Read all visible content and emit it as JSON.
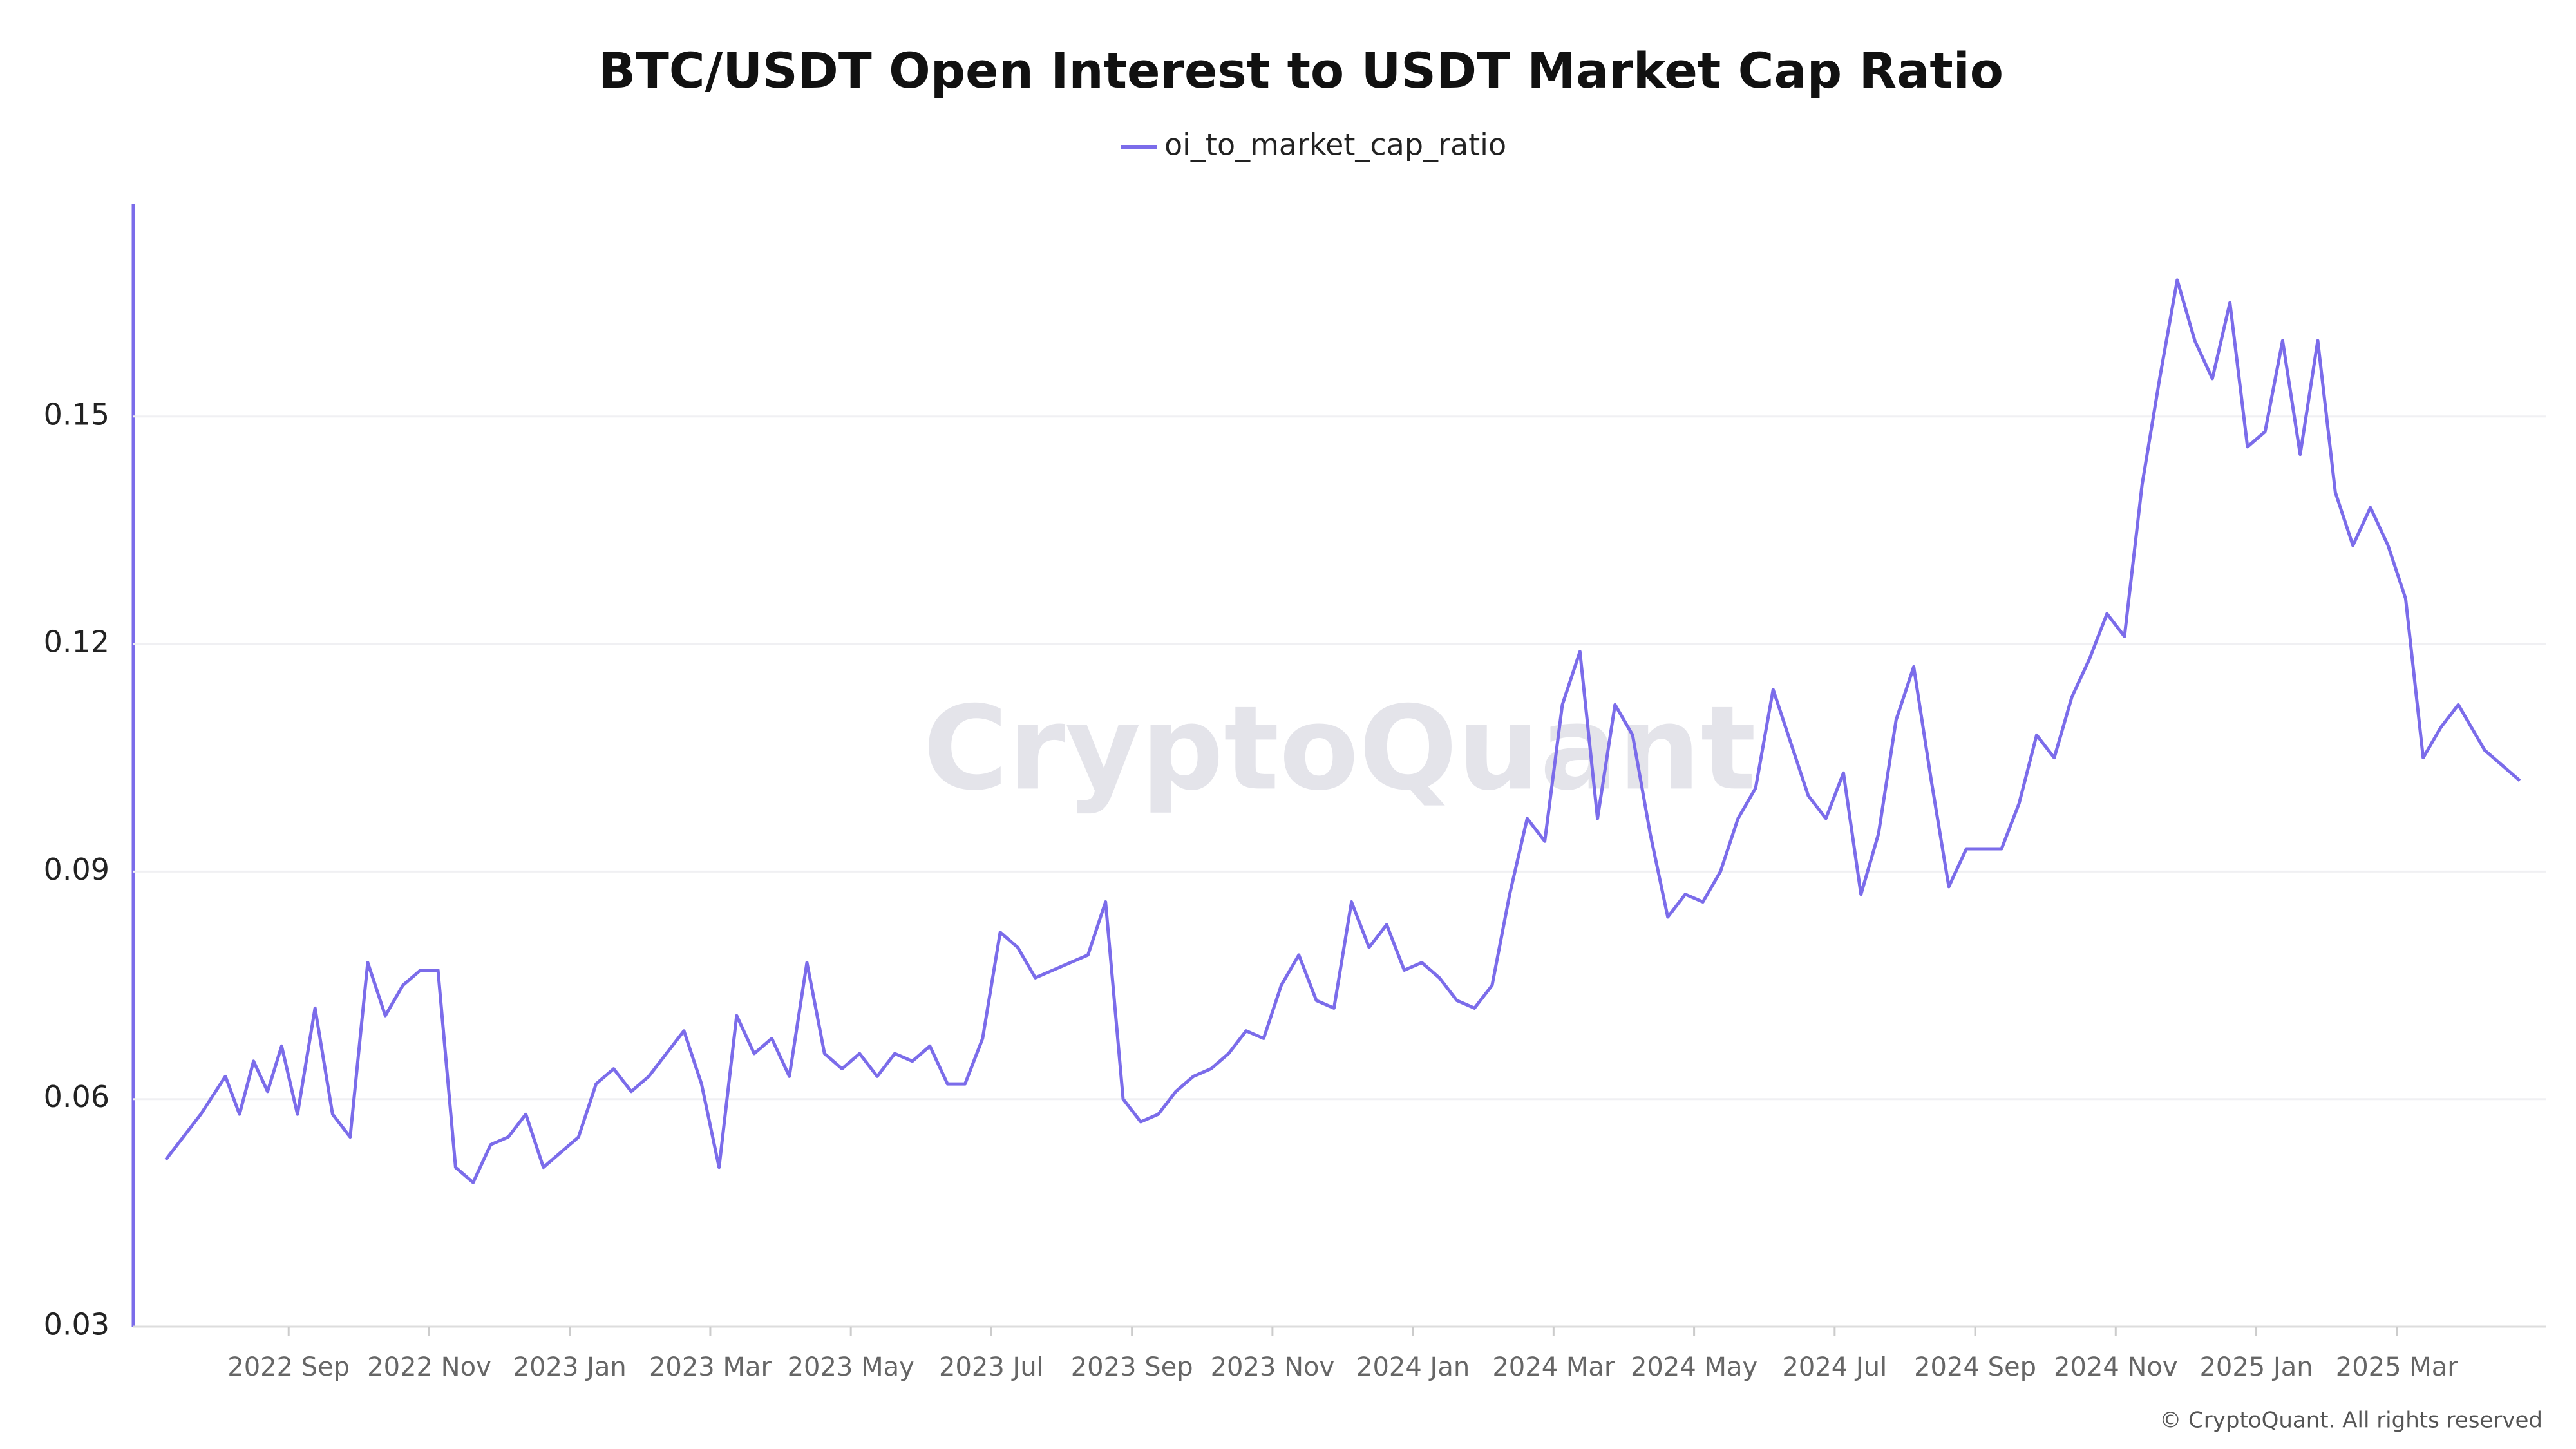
{
  "chart_data": {
    "type": "line",
    "title": "BTC/USDT Open Interest to USDT Market Cap Ratio",
    "watermark": "CryptoQuant",
    "copyright": "© CryptoQuant. All rights reserved",
    "x": [
      "2022 Jul",
      "2022 Jul",
      "2022 Aug",
      "2022 Aug",
      "2022 Aug",
      "2022 Aug",
      "2022 Aug",
      "2022 Sep",
      "2022 Sep",
      "2022 Sep",
      "2022 Sep",
      "2022 Oct",
      "2022 Oct",
      "2022 Oct",
      "2022 Oct",
      "2022 Nov",
      "2022 Nov",
      "2022 Nov",
      "2022 Nov",
      "2022 Dec",
      "2022 Dec",
      "2022 Dec",
      "2022 Dec",
      "2023 Jan",
      "2023 Jan",
      "2023 Jan",
      "2023 Jan",
      "2023 Feb",
      "2023 Feb",
      "2023 Feb",
      "2023 Feb",
      "2023 Mar",
      "2023 Mar",
      "2023 Mar",
      "2023 Mar",
      "2023 Apr",
      "2023 Apr",
      "2023 Apr",
      "2023 Apr",
      "2023 May",
      "2023 May",
      "2023 May",
      "2023 May",
      "2023 Jun",
      "2023 Jun",
      "2023 Jun",
      "2023 Jun",
      "2023 Jul",
      "2023 Jul",
      "2023 Jul",
      "2023 Jul",
      "2023 Aug",
      "2023 Aug",
      "2023 Aug",
      "2023 Aug",
      "2023 Sep",
      "2023 Sep",
      "2023 Sep",
      "2023 Sep",
      "2023 Oct",
      "2023 Oct",
      "2023 Oct",
      "2023 Oct",
      "2023 Nov",
      "2023 Nov",
      "2023 Nov",
      "2023 Nov",
      "2023 Dec",
      "2023 Dec",
      "2023 Dec",
      "2023 Dec",
      "2024 Jan",
      "2024 Jan",
      "2024 Jan",
      "2024 Jan",
      "2024 Feb",
      "2024 Feb",
      "2024 Feb",
      "2024 Feb",
      "2024 Mar",
      "2024 Mar",
      "2024 Mar",
      "2024 Mar",
      "2024 Apr",
      "2024 Apr",
      "2024 Apr",
      "2024 Apr",
      "2024 May",
      "2024 May",
      "2024 May",
      "2024 May",
      "2024 Jun",
      "2024 Jun",
      "2024 Jun",
      "2024 Jun",
      "2024 Jul",
      "2024 Jul",
      "2024 Jul",
      "2024 Jul",
      "2024 Aug",
      "2024 Aug",
      "2024 Aug",
      "2024 Aug",
      "2024 Sep",
      "2024 Sep",
      "2024 Sep",
      "2024 Sep",
      "2024 Oct",
      "2024 Oct",
      "2024 Oct",
      "2024 Oct",
      "2024 Nov",
      "2024 Nov",
      "2024 Nov",
      "2024 Nov",
      "2024 Dec",
      "2024 Dec",
      "2024 Dec",
      "2024 Dec",
      "2025 Jan",
      "2025 Jan",
      "2025 Jan",
      "2025 Jan",
      "2025 Feb",
      "2025 Feb",
      "2025 Feb",
      "2025 Feb",
      "2025 Mar",
      "2025 Mar",
      "2025 Mar",
      "2025 Mar",
      "2025 Apr",
      "2025 Apr"
    ],
    "series": [
      {
        "name": "oi_to_market_cap_ratio",
        "color": "#7b6cea",
        "values": [
          0.052,
          0.058,
          0.063,
          0.058,
          0.065,
          0.061,
          0.067,
          0.058,
          0.072,
          0.058,
          0.055,
          0.078,
          0.071,
          0.075,
          0.077,
          0.077,
          0.051,
          0.049,
          0.054,
          0.055,
          0.058,
          0.051,
          0.053,
          0.055,
          0.062,
          0.064,
          0.061,
          0.063,
          0.066,
          0.069,
          0.062,
          0.051,
          0.071,
          0.066,
          0.068,
          0.063,
          0.078,
          0.066,
          0.064,
          0.066,
          0.063,
          0.066,
          0.065,
          0.067,
          0.062,
          0.062,
          0.068,
          0.082,
          0.08,
          0.076,
          0.077,
          0.078,
          0.079,
          0.086,
          0.06,
          0.057,
          0.058,
          0.061,
          0.063,
          0.064,
          0.066,
          0.069,
          0.068,
          0.075,
          0.079,
          0.073,
          0.072,
          0.086,
          0.08,
          0.083,
          0.077,
          0.078,
          0.076,
          0.073,
          0.072,
          0.075,
          0.087,
          0.097,
          0.094,
          0.112,
          0.119,
          0.097,
          0.112,
          0.108,
          0.095,
          0.084,
          0.087,
          0.086,
          0.09,
          0.097,
          0.101,
          0.114,
          0.107,
          0.1,
          0.097,
          0.103,
          0.087,
          0.095,
          0.11,
          0.117,
          0.102,
          0.088,
          0.093,
          0.093,
          0.093,
          0.099,
          0.108,
          0.105,
          0.113,
          0.118,
          0.124,
          0.121,
          0.141,
          0.155,
          0.168,
          0.16,
          0.155,
          0.165,
          0.146,
          0.148,
          0.16,
          0.145,
          0.16,
          0.14,
          0.133,
          0.138,
          0.133,
          0.126,
          0.105,
          0.109,
          0.112,
          0.106,
          0.102
        ]
      }
    ],
    "xticks": [
      "2022 Sep",
      "2022 Nov",
      "2023 Jan",
      "2023 Mar",
      "2023 May",
      "2023 Jul",
      "2023 Sep",
      "2023 Nov",
      "2024 Jan",
      "2024 Mar",
      "2024 May",
      "2024 Jul",
      "2024 Sep",
      "2024 Nov",
      "2025 Jan",
      "2025 Mar"
    ],
    "ylim": [
      0.03,
      0.178
    ],
    "yticks": [
      0.03,
      0.06,
      0.09,
      0.12,
      0.15
    ],
    "grid": true
  }
}
